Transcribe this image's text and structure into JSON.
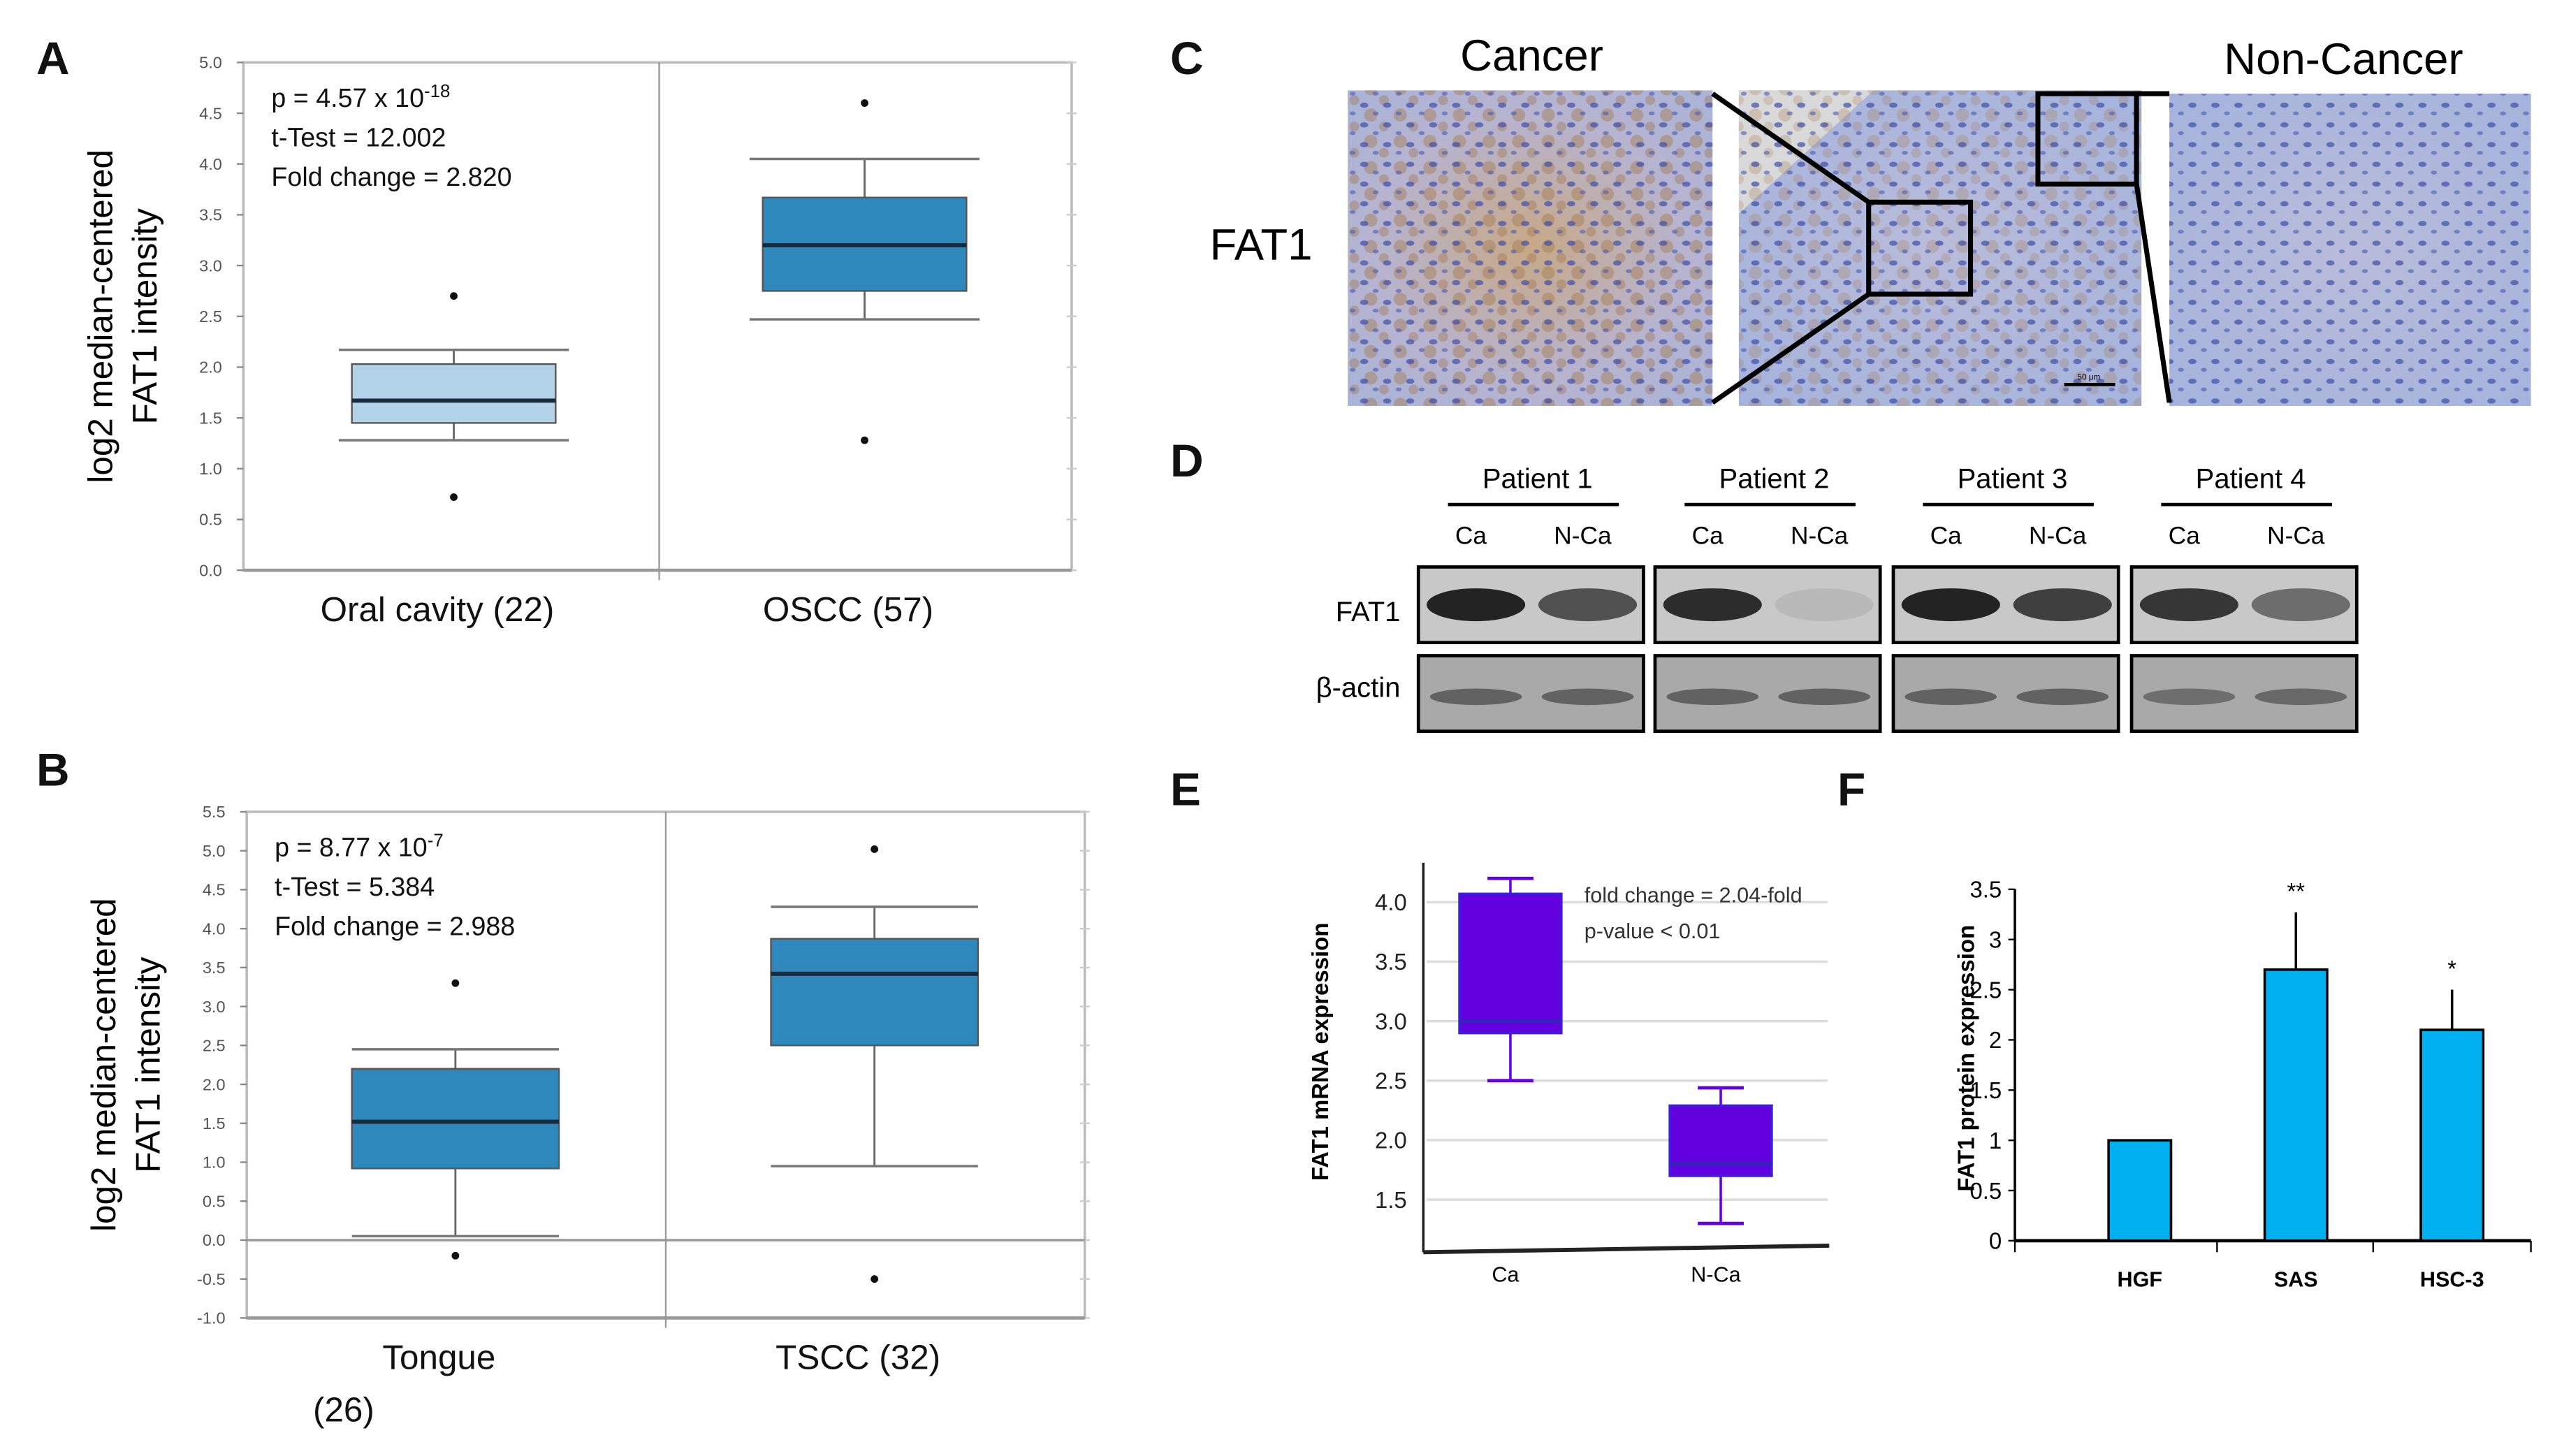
{
  "panel_labels": [
    "A",
    "B",
    "C",
    "D",
    "E",
    "F"
  ],
  "chart_data": [
    {
      "panel": "A",
      "type": "box",
      "ylabel_line1": "log2 median-centered",
      "ylabel_line2": "FAT1 intensity",
      "ylim": [
        0,
        5
      ],
      "yticks": [
        "0.0",
        "0.5",
        "1.0",
        "1.5",
        "2.0",
        "2.5",
        "3.0",
        "3.5",
        "4.0",
        "4.5",
        "5.0"
      ],
      "annotations": {
        "p": "p = 4.57 x 10",
        "p_exp": "-18",
        "ttest": "t-Test = 12.002",
        "fold": "Fold change = 2.820"
      },
      "categories": [
        "Oral cavity (22)",
        "OSCC (57)"
      ],
      "boxes": [
        {
          "name": "Oral cavity (22)",
          "min": 1.28,
          "q1": 1.45,
          "median": 1.67,
          "q3": 2.03,
          "max": 2.17,
          "outliers": [
            2.7,
            0.72
          ],
          "color": "#b3d3e8"
        },
        {
          "name": "OSCC (57)",
          "min": 2.47,
          "q1": 2.75,
          "median": 3.2,
          "q3": 3.67,
          "max": 4.05,
          "outliers": [
            4.6,
            1.28
          ],
          "color": "#2e88bb"
        }
      ]
    },
    {
      "panel": "B",
      "type": "box",
      "ylabel_line1": "log2 median-centered",
      "ylabel_line2": "FAT1 intensity",
      "ylim": [
        -1,
        5.5
      ],
      "yticks": [
        "-1.0",
        "-0.5",
        "0.0",
        "0.5",
        "1.0",
        "1.5",
        "2.0",
        "2.5",
        "3.0",
        "3.5",
        "4.0",
        "4.5",
        "5.0",
        "5.5"
      ],
      "annotations": {
        "p": "p = 8.77 x 10",
        "p_exp": "-7",
        "ttest": "t-Test = 5.384",
        "fold": "Fold change = 2.988"
      },
      "categories": [
        "Tongue",
        "TSCC (32)"
      ],
      "category_sub": [
        "(26)",
        ""
      ],
      "boxes": [
        {
          "name": "Tongue (26)",
          "min": 0.05,
          "q1": 0.92,
          "median": 1.52,
          "q3": 2.2,
          "max": 2.45,
          "outliers": [
            3.3,
            -0.2
          ],
          "color": "#2e88bb"
        },
        {
          "name": "TSCC (32)",
          "min": 0.95,
          "q1": 2.5,
          "median": 3.42,
          "q3": 3.87,
          "max": 4.28,
          "outliers": [
            5.02,
            -0.5
          ],
          "color": "#2e88bb"
        }
      ]
    },
    {
      "panel": "E",
      "type": "box",
      "ylabel": "FAT1 mRNA expression",
      "ylim": [
        1.2,
        4.3
      ],
      "yticks": [
        "1.5",
        "2.0",
        "2.5",
        "3.0",
        "3.5",
        "4.0"
      ],
      "annotations": {
        "fold": "fold change = 2.04-fold",
        "p": "p-value < 0.01"
      },
      "categories": [
        "Ca",
        "N-Ca"
      ],
      "boxes": [
        {
          "name": "Ca",
          "min": 2.5,
          "q1": 2.9,
          "median": 3.0,
          "q3": 4.07,
          "max": 4.2,
          "color": "#6200e0"
        },
        {
          "name": "N-Ca",
          "min": 1.3,
          "q1": 1.7,
          "median": 1.8,
          "q3": 2.29,
          "max": 2.44,
          "color": "#6200e0"
        }
      ]
    },
    {
      "panel": "F",
      "type": "bar",
      "ylabel": "FAT1 protein expression",
      "ylim": [
        0,
        3.5
      ],
      "yticks": [
        "0",
        "0.5",
        "1",
        "1.5",
        "2",
        "2.5",
        "3",
        "3.5"
      ],
      "categories": [
        "HGF",
        "SAS",
        "HSC-3"
      ],
      "values": [
        1.0,
        2.7,
        2.1
      ],
      "errors": [
        0,
        0.57,
        0.4
      ],
      "significance": [
        "",
        "**",
        "*"
      ],
      "color": "#00b0f0"
    }
  ],
  "panel_c": {
    "title_left": "Cancer",
    "title_right": "Non-Cancer",
    "row_label": "FAT1",
    "scale_bar": "50 μm"
  },
  "panel_d": {
    "patients": [
      "Patient 1",
      "Patient 2",
      "Patient 3",
      "Patient 4"
    ],
    "lanes": [
      "Ca",
      "N-Ca"
    ],
    "rows": [
      "FAT1",
      "β-actin"
    ],
    "fat1_intensity": [
      [
        0.9,
        0.65
      ],
      [
        0.85,
        0.08
      ],
      [
        0.9,
        0.75
      ],
      [
        0.8,
        0.5
      ]
    ],
    "actin_intensity": [
      [
        0.6,
        0.6
      ],
      [
        0.6,
        0.6
      ],
      [
        0.6,
        0.6
      ],
      [
        0.5,
        0.55
      ]
    ]
  }
}
